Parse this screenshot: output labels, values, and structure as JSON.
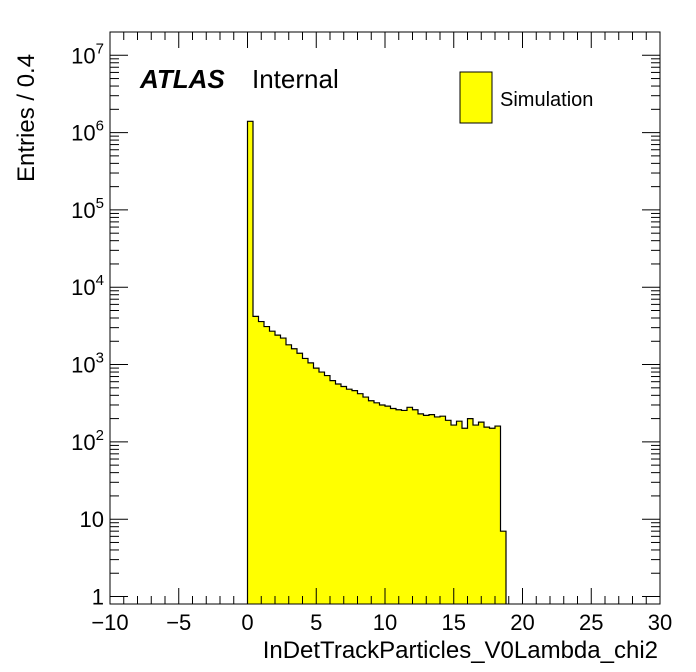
{
  "chart_data": {
    "type": "bar",
    "xlabel": "InDetTrackParticles_V0Lambda_chi2",
    "ylabel": "Entries / 0.4",
    "xlim": [
      -10,
      30
    ],
    "ylim": [
      0.8,
      20000000
    ],
    "yscale": "log",
    "bin_width": 0.4,
    "x_ticks": [
      "−10",
      "−5",
      "0",
      "5",
      "10",
      "15",
      "20",
      "25",
      "30"
    ],
    "y_ticks": [
      {
        "base": "1",
        "exp": ""
      },
      {
        "base": "10",
        "exp": ""
      },
      {
        "base": "10",
        "exp": "2"
      },
      {
        "base": "10",
        "exp": "3"
      },
      {
        "base": "10",
        "exp": "4"
      },
      {
        "base": "10",
        "exp": "5"
      },
      {
        "base": "10",
        "exp": "6"
      },
      {
        "base": "10",
        "exp": "7"
      }
    ],
    "fill_color": "#ffff00",
    "line_color": "#000000",
    "labels": {
      "atlas": "ATLAS",
      "internal": "Internal"
    },
    "legend": {
      "placement": "top-right",
      "entries": [
        {
          "name": "Simulation",
          "color": "#ffff00"
        }
      ]
    },
    "series": [
      {
        "name": "Simulation",
        "bin_low_edges": [
          0.0,
          0.4,
          0.8,
          1.2,
          1.6,
          2.0,
          2.4,
          2.8,
          3.2,
          3.6,
          4.0,
          4.4,
          4.8,
          5.2,
          5.6,
          6.0,
          6.4,
          6.8,
          7.2,
          7.6,
          8.0,
          8.4,
          8.8,
          9.2,
          9.6,
          10.0,
          10.4,
          10.8,
          11.2,
          11.6,
          12.0,
          12.4,
          12.8,
          13.2,
          13.6,
          14.0,
          14.4,
          14.8,
          15.2,
          15.6,
          16.0,
          16.4,
          16.8,
          17.2,
          17.6,
          18.0,
          18.4
        ],
        "values": [
          1400000,
          4200,
          3600,
          3100,
          2700,
          2400,
          2200,
          1800,
          1600,
          1400,
          1200,
          1050,
          900,
          800,
          720,
          620,
          560,
          520,
          480,
          460,
          420,
          380,
          340,
          320,
          300,
          290,
          270,
          260,
          255,
          280,
          260,
          230,
          220,
          225,
          210,
          215,
          190,
          165,
          185,
          150,
          200,
          165,
          180,
          155,
          150,
          160,
          7
        ]
      }
    ]
  }
}
